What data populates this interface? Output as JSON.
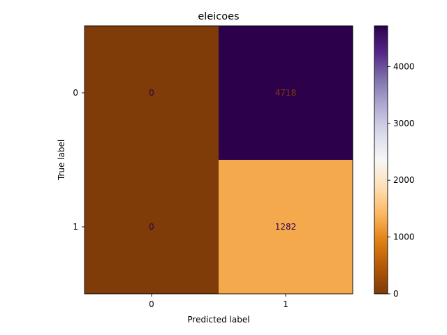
{
  "chart_data": {
    "type": "heatmap",
    "title": "eleicoes",
    "xlabel": "Predicted label",
    "ylabel": "True label",
    "x_categories": [
      "0",
      "1"
    ],
    "y_categories": [
      "0",
      "1"
    ],
    "values": [
      [
        0,
        4718
      ],
      [
        0,
        1282
      ]
    ],
    "colormap": "PuOr",
    "colorbar": {
      "range": [
        0,
        4718
      ],
      "ticks": [
        0,
        1000,
        2000,
        3000,
        4000
      ],
      "tick_labels": [
        "0",
        "1000",
        "2000",
        "3000",
        "4000"
      ]
    }
  }
}
